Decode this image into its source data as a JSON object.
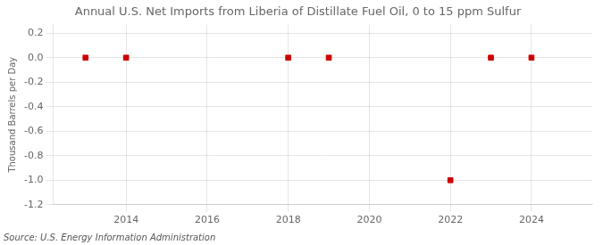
{
  "chart_data": {
    "type": "scatter",
    "title": "Annual U.S. Net Imports from Liberia of Distillate Fuel Oil, 0 to 15 ppm Sulfur",
    "ylabel": "Thousand Barrels per Day",
    "source": "Source: U.S. Energy Information Administration",
    "x": [
      2013,
      2014,
      2018,
      2019,
      2022,
      2023,
      2024
    ],
    "values": [
      0,
      0,
      0,
      0,
      -1,
      0,
      0
    ],
    "color": "#cc0000",
    "marker": "square",
    "xlim": [
      2012.2,
      2025.5
    ],
    "xticks": [
      2014,
      2016,
      2018,
      2020,
      2022,
      2024
    ],
    "ylim": [
      -1.2,
      0.27
    ],
    "yticks": [
      0.2,
      {
        "value": 0,
        "label": "0.0"
      },
      -0.2,
      -0.4,
      -0.6,
      -0.8,
      {
        "value": -1,
        "label": "-1.0"
      },
      -1.2
    ],
    "grid": true
  }
}
